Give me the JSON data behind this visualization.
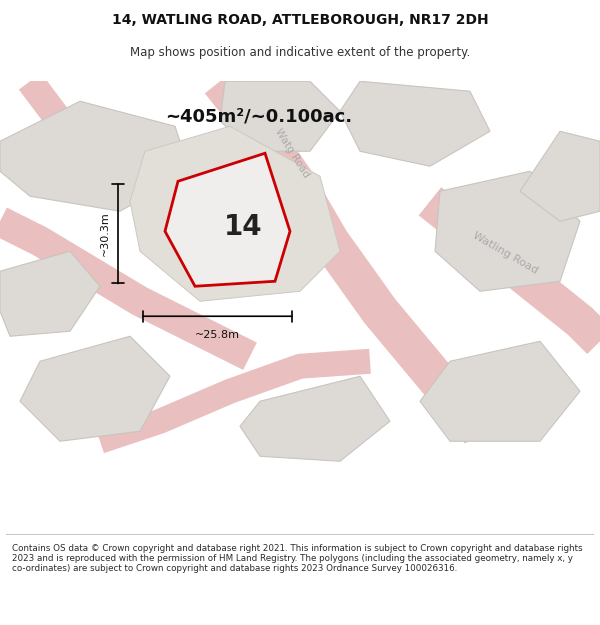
{
  "title": "14, WATLING ROAD, ATTLEBOROUGH, NR17 2DH",
  "subtitle": "Map shows position and indicative extent of the property.",
  "area_text": "~405m²/~0.100ac.",
  "label_number": "14",
  "dim_width": "~25.8m",
  "dim_height": "~30.3m",
  "road_label_diag": "Watg Road",
  "road_label_right": "Watling Road",
  "footer": "Contains OS data © Crown copyright and database right 2021. This information is subject to Crown copyright and database rights 2023 and is reproduced with the permission of HM Land Registry. The polygons (including the associated geometry, namely x, y co-ordinates) are subject to Crown copyright and database rights 2023 Ordnance Survey 100026316.",
  "map_bg": "#f2f0ed",
  "building_face": "#dddad6",
  "building_edge": "#c8c4c0",
  "road_color": "#e8b8b8",
  "red_line": "#cc0000",
  "label_color": "#aaaaaa",
  "dim_color": "#111111",
  "text_color": "#222222"
}
